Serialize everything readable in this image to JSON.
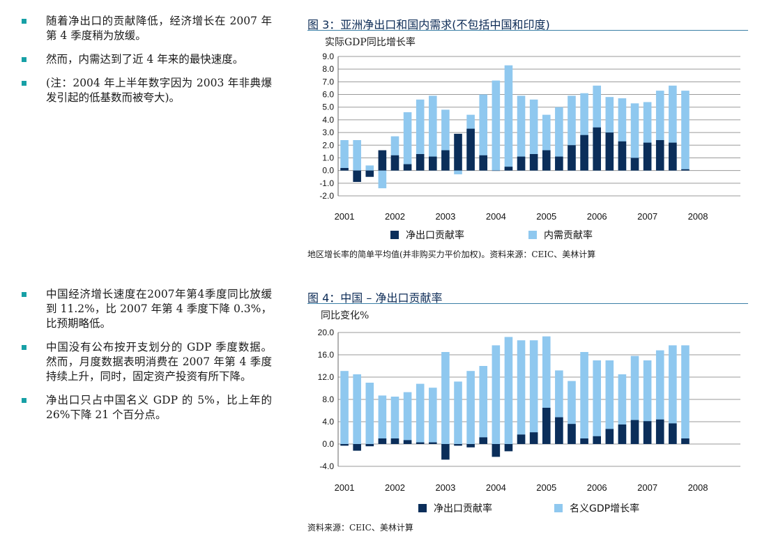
{
  "colors": {
    "dark": "#0b2e5a",
    "light": "#8fc8ef",
    "bullet": "#17a0a6",
    "title": "#0b2a55"
  },
  "section1": {
    "bullets": [
      "随着净出口的贡献降低，经济增长在 2007 年第 4 季度稍为放缓。",
      "然而，内需达到了近 4 年来的最快速度。",
      "(注：2004 年上半年数字因为 2003 年非典爆发引起的低基数而被夸大)。"
    ]
  },
  "section2": {
    "bullets": [
      "中国经济增长速度在2007年第4季度同比放缓到 11.2%，比 2007 年第 4 季度下降 0.3%，比预期略低。",
      "中国没有公布按开支划分的 GDP 季度数据。然而，月度数据表明消费在 2007 年第 4 季度持续上升，同时，固定资产投资有所下降。",
      "净出口只占中国名义 GDP 的 5%，比上年的 26%下降 21 个百分点。"
    ]
  },
  "figure3": {
    "title": "图 3：亚洲净出口和国内需求(不包括中国和印度)",
    "unit": "实际GDP同比增长率",
    "note": "地区增长率的简单平均值(并非购买力平价加权)。资料来源：CEIC、美林计算"
  },
  "figure4": {
    "title": "图 4：中国 – 净出口贡献率",
    "unit": "同比变化%",
    "note": "资料来源：CEIC、美林计算"
  },
  "chart_data": [
    {
      "type": "bar",
      "stacked": "overlay",
      "title": "图 3：亚洲净出口和国内需求(不包括中国和印度)",
      "ylabel": "实际GDP同比增长率",
      "ylim": [
        -2.0,
        9.0
      ],
      "yticks": [
        "9.0",
        "8.0",
        "7.0",
        "6.0",
        "5.0",
        "4.0",
        "3.0",
        "2.0",
        "1.0",
        "0.0",
        "-1.0",
        "-2.0"
      ],
      "year_labels": [
        "2001",
        "2002",
        "2003",
        "2004",
        "2005",
        "2006",
        "2007",
        "2008"
      ],
      "series": [
        {
          "name": "净出口贡献率",
          "color": "dark",
          "values": [
            0.2,
            -0.9,
            -0.5,
            1.6,
            1.2,
            0.5,
            1.3,
            1.1,
            1.6,
            2.9,
            3.3,
            1.2,
            0.0,
            0.3,
            1.1,
            1.3,
            1.6,
            1.1,
            2.0,
            2.8,
            3.4,
            3.0,
            2.3,
            1.0,
            2.2,
            2.4,
            2.2,
            0.1
          ]
        },
        {
          "name": "内需贡献率",
          "color": "light",
          "values": [
            2.4,
            2.4,
            0.4,
            -1.4,
            2.7,
            4.6,
            5.6,
            5.9,
            4.8,
            -0.3,
            4.4,
            6.0,
            7.1,
            8.3,
            5.9,
            5.6,
            4.4,
            5.0,
            5.9,
            6.1,
            6.7,
            5.8,
            5.7,
            5.3,
            5.4,
            6.3,
            6.7,
            6.3
          ]
        }
      ]
    },
    {
      "type": "bar",
      "stacked": "overlay",
      "title": "图 4：中国 – 净出口贡献率",
      "ylabel": "同比变化%",
      "ylim": [
        -4.0,
        20.0
      ],
      "yticks": [
        "20.0",
        "16.0",
        "12.0",
        "8.0",
        "4.0",
        "0.0",
        "-4.0"
      ],
      "year_labels": [
        "2001",
        "2002",
        "2003",
        "2004",
        "2005",
        "2006",
        "2007",
        "2008"
      ],
      "series": [
        {
          "name": "净出口贡献率",
          "color": "dark",
          "values": [
            -0.3,
            -1.2,
            -0.4,
            1.0,
            1.0,
            0.7,
            0.3,
            0.3,
            -2.8,
            -0.3,
            -0.6,
            1.2,
            -2.3,
            -1.3,
            1.7,
            2.1,
            6.5,
            4.8,
            3.6,
            1.0,
            1.4,
            2.7,
            3.5,
            4.3,
            4.1,
            4.4,
            3.7,
            1.0
          ]
        },
        {
          "name": "名义GDP增长率",
          "color": "light",
          "values": [
            13.1,
            12.5,
            11.0,
            8.7,
            8.5,
            9.3,
            10.8,
            10.1,
            16.5,
            11.2,
            13.1,
            14.0,
            17.7,
            19.2,
            18.6,
            18.6,
            19.3,
            13.2,
            11.3,
            16.5,
            15.0,
            15.0,
            12.5,
            15.8,
            15.0,
            16.8,
            17.7,
            17.7
          ]
        }
      ]
    }
  ]
}
